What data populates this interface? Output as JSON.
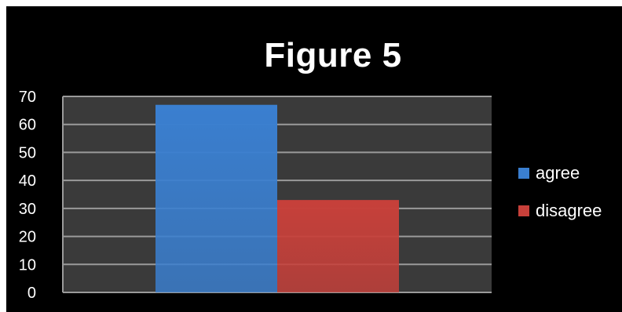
{
  "chart_data": {
    "type": "bar",
    "title": "Figure 5",
    "xlabel": "",
    "ylabel": "",
    "categories": [
      ""
    ],
    "series": [
      {
        "name": "agree",
        "values": [
          67
        ],
        "color": "#3a7fd0"
      },
      {
        "name": "disagree",
        "values": [
          33
        ],
        "color": "#c7403a"
      }
    ],
    "ylim": [
      0,
      70
    ],
    "yticks": [
      0,
      10,
      20,
      30,
      40,
      50,
      60,
      70
    ],
    "grid": true,
    "legend": "right",
    "plot_background": "#3a3a3a",
    "grid_color": "#9a9a9a"
  }
}
